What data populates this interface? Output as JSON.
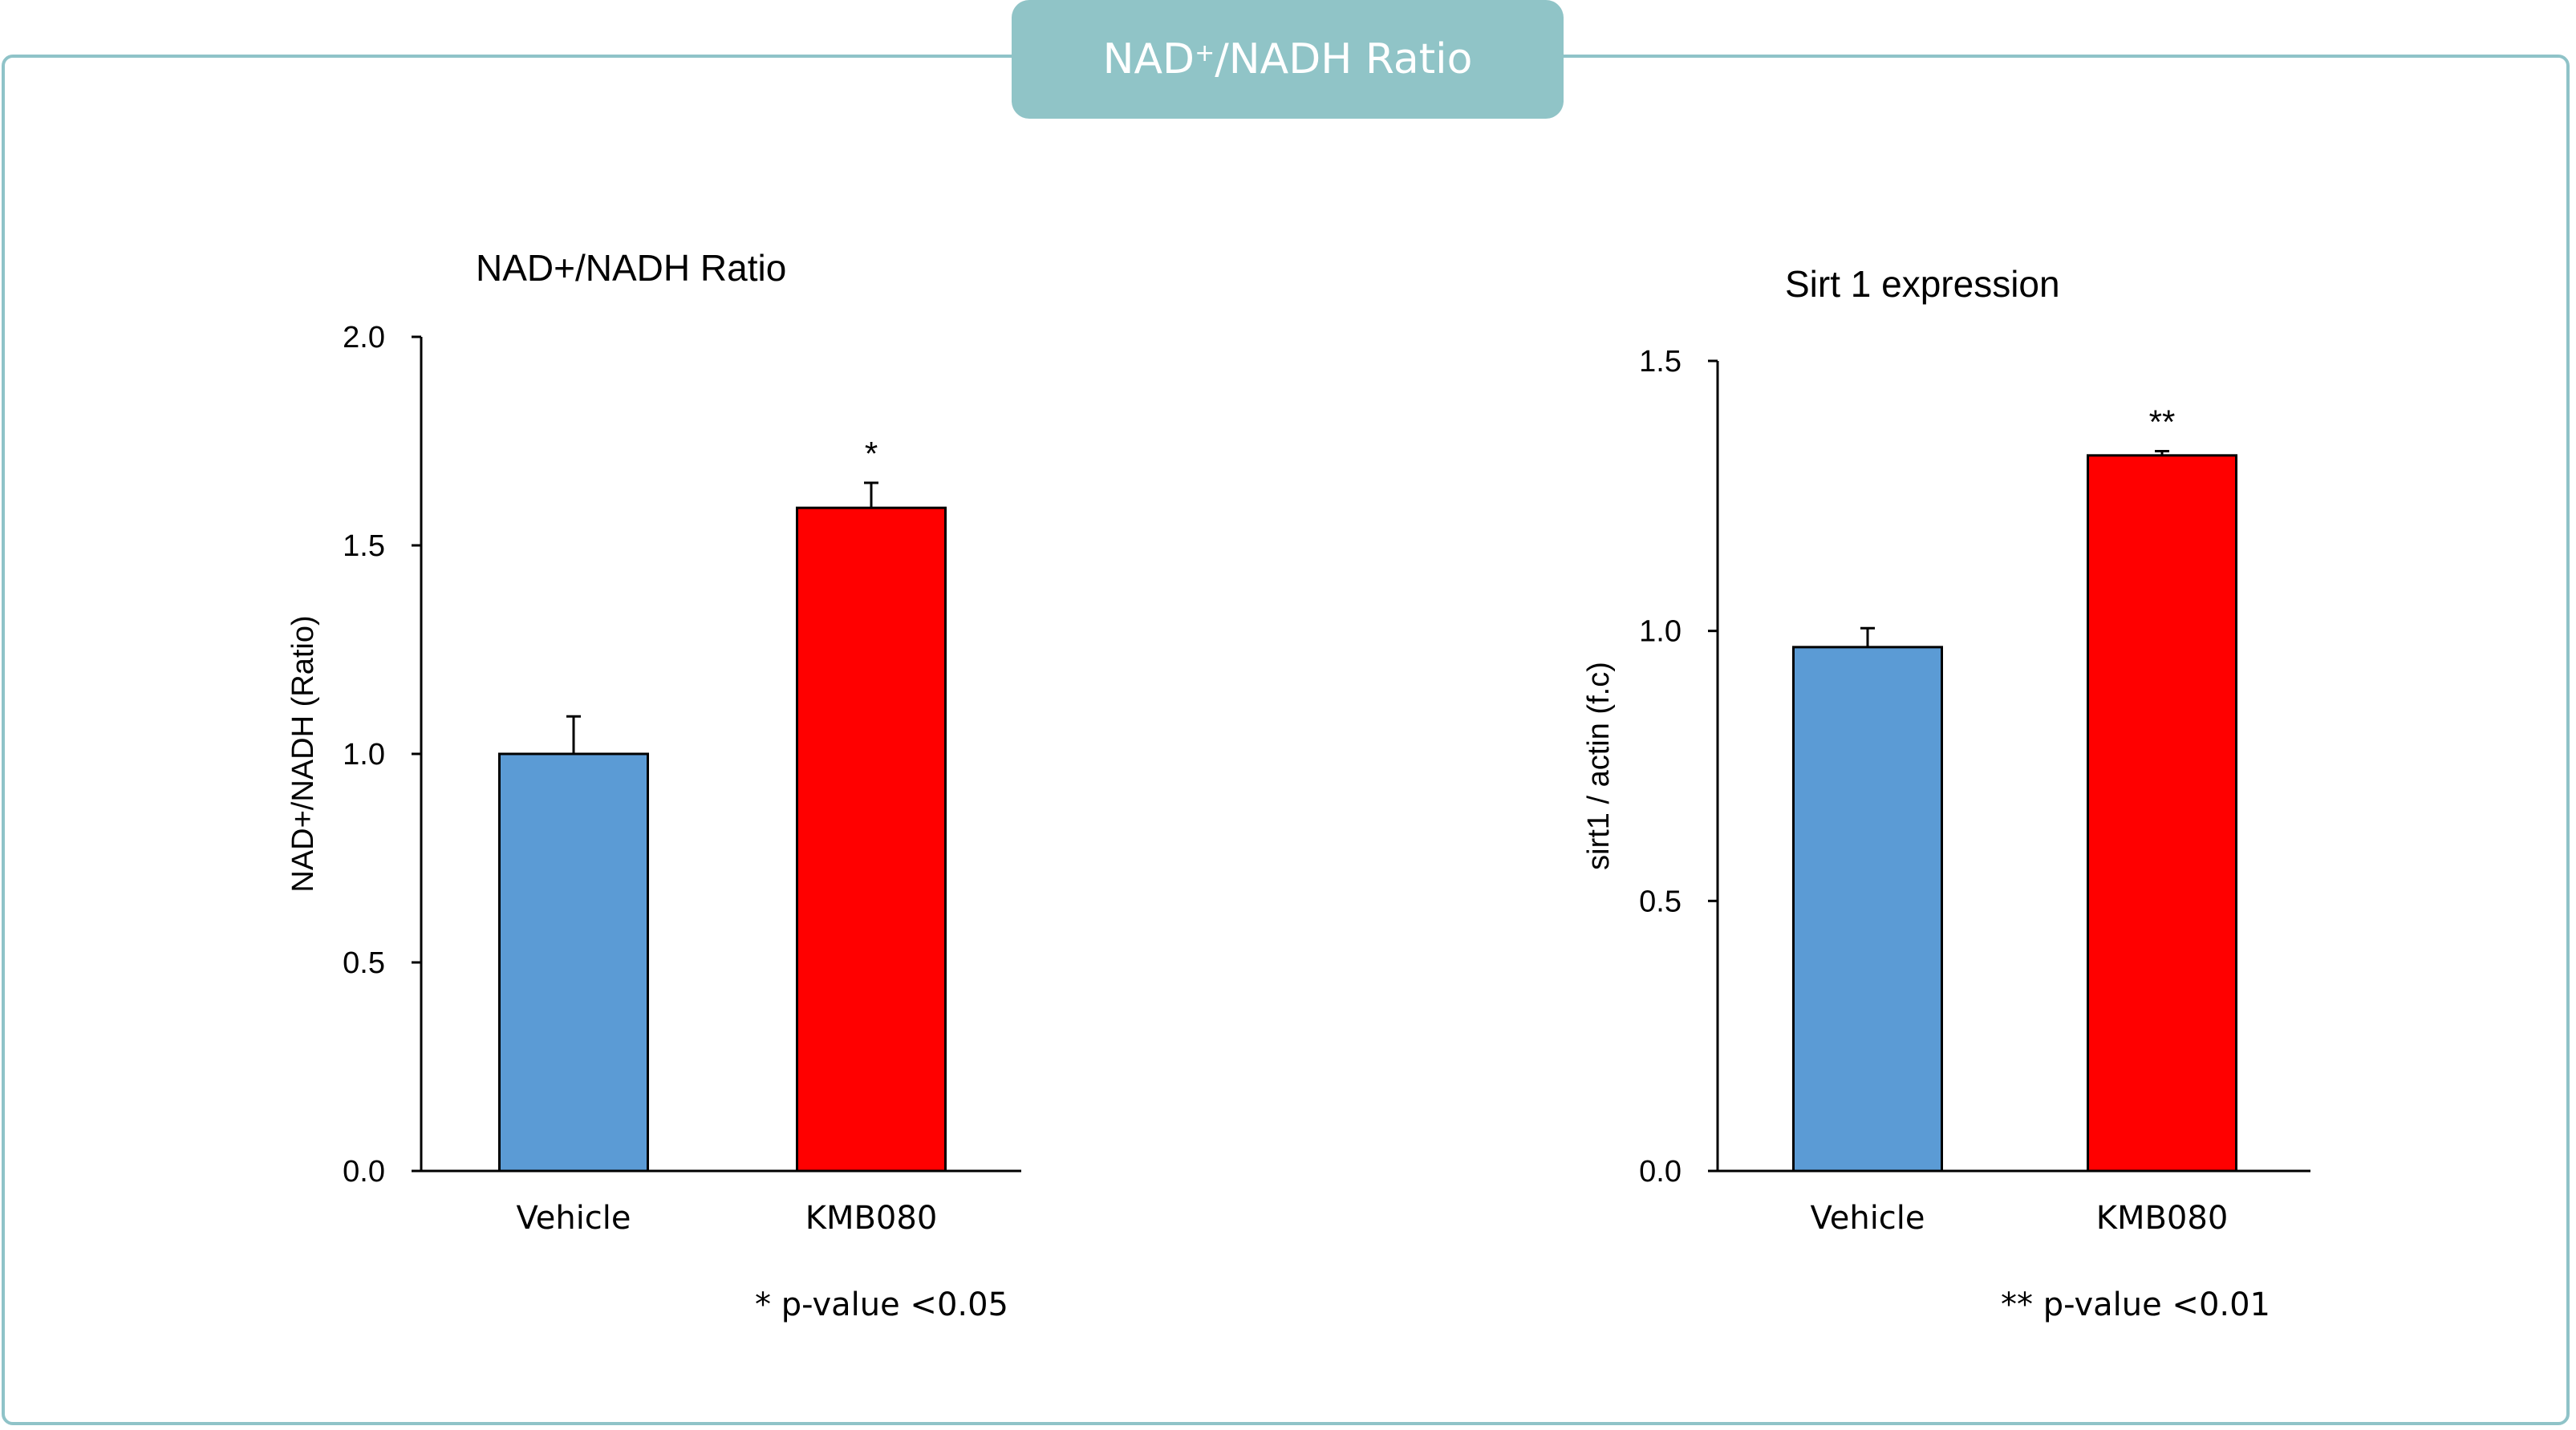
{
  "header": {
    "title_prefix": "NAD",
    "title_superscript": "+",
    "title_suffix": "/NADH Ratio",
    "tab_color": "#90c4c7",
    "border_color": "#8fc3c8"
  },
  "chart_data": [
    {
      "type": "bar",
      "title": "NAD+/NADH Ratio",
      "xlabel": "",
      "ylabel": "NAD+/NADH (Ratio)",
      "ylim": [
        0,
        2.0
      ],
      "yticks": [
        0.0,
        0.5,
        1.0,
        1.5,
        2.0
      ],
      "categories": [
        "Vehicle",
        "KMB080"
      ],
      "values": [
        1.0,
        1.59
      ],
      "errors": [
        0.09,
        0.06
      ],
      "colors": [
        "#5b9bd5",
        "#ff0000"
      ],
      "significance": [
        "",
        "*"
      ],
      "footnote": "* p-value  <0.05",
      "grid": false,
      "legend": "none"
    },
    {
      "type": "bar",
      "title": "Sirt 1 expression",
      "xlabel": "",
      "ylabel": "sirt1 / actin (f.c)",
      "ylim": [
        0,
        1.5
      ],
      "yticks": [
        0.0,
        0.5,
        1.0,
        1.5
      ],
      "categories": [
        "Vehicle",
        "KMB080"
      ],
      "values": [
        0.97,
        1.325
      ],
      "errors": [
        0.035,
        0.008
      ],
      "colors": [
        "#5b9bd5",
        "#ff0000"
      ],
      "significance": [
        "",
        "**"
      ],
      "footnote": "** p-value  <0.01",
      "grid": false,
      "legend": "none"
    }
  ]
}
